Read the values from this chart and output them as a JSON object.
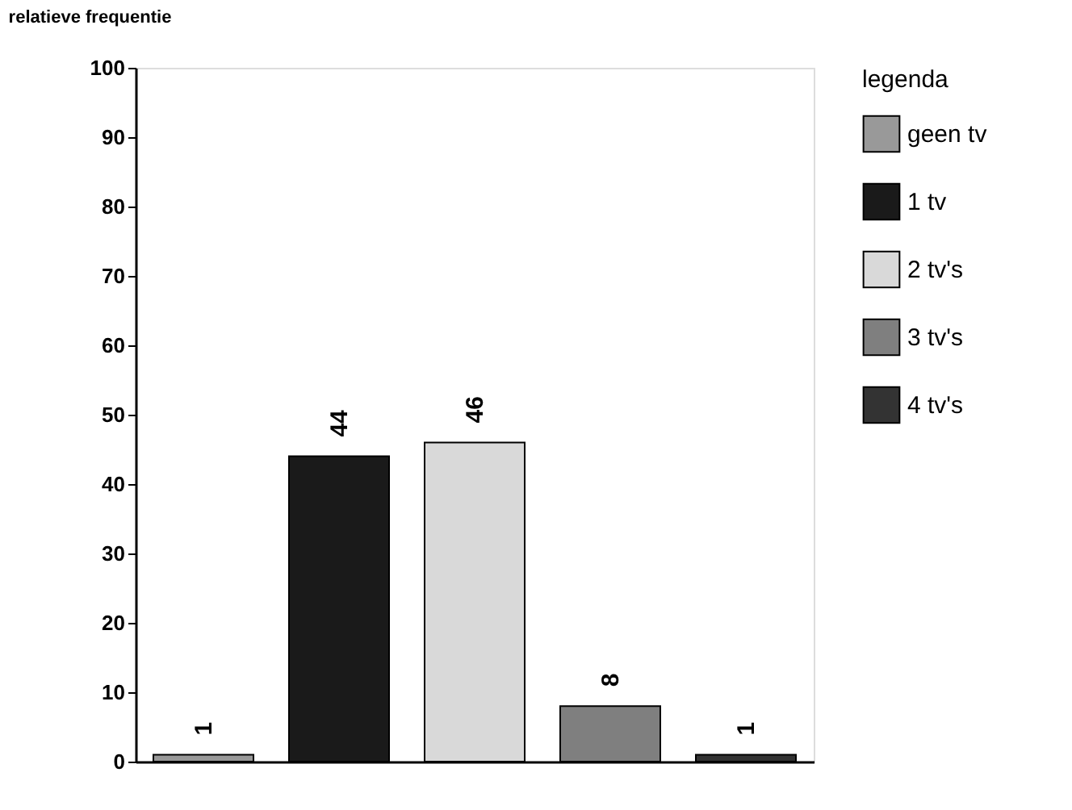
{
  "chart_data": {
    "type": "bar",
    "ylabel": "relatieve frequentie",
    "legend_title": "legenda",
    "categories": [
      null,
      null,
      null,
      null,
      null
    ],
    "series": [
      {
        "name": "geen tv",
        "color": "#999999",
        "values": [
          1,
          null,
          null,
          null,
          null
        ]
      },
      {
        "name": "1 tv",
        "color": "#1a1a1a",
        "values": [
          null,
          44,
          null,
          null,
          null
        ]
      },
      {
        "name": "2 tv's",
        "color": "#d9d9d9",
        "values": [
          null,
          null,
          46,
          null,
          null
        ]
      },
      {
        "name": "3 tv's",
        "color": "#7f7f7f",
        "values": [
          null,
          null,
          null,
          8,
          null
        ]
      },
      {
        "name": "4 tv's",
        "color": "#333333",
        "values": [
          null,
          null,
          null,
          null,
          1
        ]
      }
    ],
    "ylim": [
      0,
      100
    ],
    "yticks": [
      0,
      10,
      20,
      30,
      40,
      50,
      60,
      70,
      80,
      90,
      100
    ],
    "grid": false,
    "legend": "right",
    "tick_labels": "y",
    "data_labels": true
  }
}
